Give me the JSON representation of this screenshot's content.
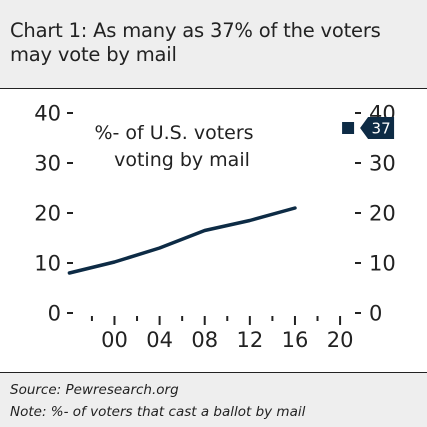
{
  "title": {
    "line1": "Chart 1: As many as 37% of the voters",
    "line2": "may vote by mail"
  },
  "footer": {
    "source": "Source: Pewresearch.org",
    "note": "Note: %- of voters that cast a ballot by mail"
  },
  "chart_data": {
    "type": "line",
    "title": "Chart 1: As many as 37% of the voters may vote by mail",
    "annotation": [
      "%- of U.S. voters",
      "voting by mail"
    ],
    "x_tick_labels": [
      "00",
      "04",
      "08",
      "12",
      "16",
      "20"
    ],
    "xlim": [
      1996.5,
      2021.5
    ],
    "y_ticks": [
      0,
      10,
      20,
      30,
      40
    ],
    "ylim": [
      0,
      40
    ],
    "grid": false,
    "series": [
      {
        "x": [
          1996,
          2000,
          2004,
          2008,
          2012,
          2016
        ],
        "values": [
          8,
          10.2,
          13,
          16.5,
          18.5,
          21
        ],
        "color": "#0d2b45"
      }
    ],
    "marker": {
      "x": 2020,
      "value": 37,
      "label": "37",
      "color": "#0d2b45"
    }
  }
}
